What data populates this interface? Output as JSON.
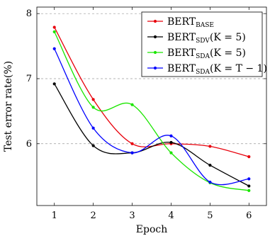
{
  "chart_data": {
    "type": "line",
    "xlabel": "Epoch",
    "ylabel": "Test error rate(%)",
    "x": [
      1,
      2,
      3,
      4,
      5,
      6
    ],
    "xlim": [
      0.55,
      6.45
    ],
    "ylim": [
      5.05,
      8.1
    ],
    "yticks": [
      6,
      7,
      8
    ],
    "grid": "horizontal dashed",
    "legend_position": "top-right",
    "smooth": true,
    "series": [
      {
        "name": "BERT_BASE",
        "name_main": "BERT",
        "name_sub": "BASE",
        "name_suffix": "",
        "color": "#e8000b",
        "values": [
          7.79,
          6.68,
          6.0,
          6.0,
          5.96,
          5.8
        ]
      },
      {
        "name": "BERT_SDV(K = 5)",
        "name_main": "BERT",
        "name_sub": "SDV",
        "name_suffix": "(K = 5)",
        "color": "#000000",
        "values": [
          6.92,
          5.97,
          5.86,
          6.02,
          5.67,
          5.35
        ]
      },
      {
        "name": "BERT_SDA(K = 5)",
        "name_main": "BERT",
        "name_sub": "SDA",
        "name_suffix": "(K = 5)",
        "color": "#1be600",
        "values": [
          7.72,
          6.56,
          6.6,
          5.86,
          5.4,
          5.28
        ]
      },
      {
        "name": "BERT_SDA(K = T − 1)",
        "name_main": "BERT",
        "name_sub": "SDA",
        "name_suffix": "(K = T − 1)",
        "color": "#0000ff",
        "values": [
          7.46,
          6.24,
          5.86,
          6.12,
          5.41,
          5.46
        ]
      }
    ]
  }
}
